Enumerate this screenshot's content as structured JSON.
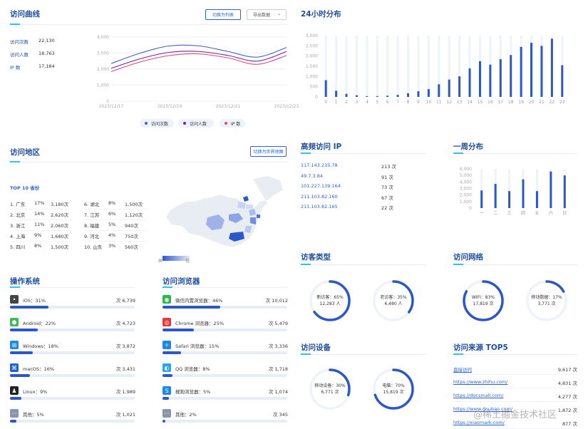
{
  "curve": {
    "title": "访问曲线",
    "btn_list": "切换为列表",
    "btn_export": "导出数据",
    "stats": [
      {
        "label": "访问次数",
        "value": "22,130"
      },
      {
        "label": "访问人数",
        "value": "18,763"
      },
      {
        "label": "IP 数",
        "value": "17,184"
      }
    ],
    "legend": [
      {
        "name": "访问次数",
        "color": "#3d63c8"
      },
      {
        "name": "访问人数",
        "color": "#7a1fa2"
      },
      {
        "name": "IP 数",
        "color": "#e0477a"
      }
    ],
    "chart_data": {
      "type": "line",
      "x": [
        "2023/12/17",
        "2023/12/18",
        "2023/12/19",
        "2023/12/20",
        "2023/12/21",
        "2023/12/22",
        "2023/12/23"
      ],
      "x_tick_labels": [
        "2023/12/17",
        "2023/12/19",
        "2023/12/21",
        "2023/12/23"
      ],
      "ylim": [
        0,
        4000
      ],
      "y_ticks": [
        "4,000",
        "3,000",
        "2,000",
        "1,000",
        "0"
      ],
      "series": [
        {
          "name": "访问次数",
          "values": [
            2350,
            3000,
            3450,
            3450,
            3100,
            2750,
            3350
          ]
        },
        {
          "name": "访问人数",
          "values": [
            2050,
            2650,
            3050,
            3100,
            2850,
            2500,
            3100
          ]
        },
        {
          "name": "IP 数",
          "values": [
            1850,
            2450,
            2850,
            2950,
            2700,
            2300,
            2850
          ]
        }
      ]
    }
  },
  "hours": {
    "title": "24小时分布",
    "chart_data": {
      "type": "bar",
      "categories": [
        "0",
        "1",
        "2",
        "3",
        "4",
        "5",
        "6",
        "7",
        "8",
        "9",
        "10",
        "11",
        "12",
        "13",
        "14",
        "15",
        "16",
        "17",
        "18",
        "19",
        "20",
        "21",
        "22",
        "23"
      ],
      "values": [
        820,
        300,
        150,
        80,
        40,
        40,
        60,
        100,
        180,
        280,
        380,
        620,
        850,
        1010,
        1400,
        1750,
        1580,
        1850,
        2050,
        2450,
        2650,
        2500,
        2850,
        1550
      ],
      "max": 3000,
      "ylim": [
        0,
        3000
      ],
      "y_ticks": [
        "3,000",
        "2,500",
        "2,000",
        "1,500",
        "1,000",
        "500",
        "0"
      ]
    }
  },
  "region": {
    "title": "访问地区",
    "btn_map": "切换为世界地图",
    "top_label": "TOP 10 省份",
    "provinces": [
      {
        "name": "1. 广东",
        "pct": "17%",
        "count": "3,180次"
      },
      {
        "name": "2. 北京",
        "pct": "14%",
        "count": "2,620次"
      },
      {
        "name": "3. 浙江",
        "pct": "11%",
        "count": "2,060次"
      },
      {
        "name": "4. 上海",
        "pct": "9%",
        "count": "1,680次"
      },
      {
        "name": "5. 四川",
        "pct": "8%",
        "count": "1,500次"
      },
      {
        "name": "6. 湖北",
        "pct": "8%",
        "count": "1,500次"
      },
      {
        "name": "7. 江苏",
        "pct": "6%",
        "count": "1,120次"
      },
      {
        "name": "8. 福建",
        "pct": "5%",
        "count": "940次"
      },
      {
        "name": "9. 河北",
        "pct": "4%",
        "count": "750次"
      },
      {
        "name": "10. 山东",
        "pct": "3%",
        "count": "560次"
      }
    ],
    "scale_high": "高",
    "scale_low": "低"
  },
  "ips": {
    "title": "高频访问 IP",
    "rows": [
      {
        "ip": "117.143.235.78",
        "count": "213 次"
      },
      {
        "ip": "49.7.3.84",
        "count": "91 次"
      },
      {
        "ip": "101.227.139.164",
        "count": "73 次"
      },
      {
        "ip": "211.103.82.160",
        "count": "67 次"
      },
      {
        "ip": "211.103.82.165",
        "count": "22 次"
      }
    ]
  },
  "week": {
    "title": "一周分布",
    "chart_data": {
      "type": "bar",
      "categories": [
        "一",
        "二",
        "三",
        "四",
        "五",
        "六",
        "日"
      ],
      "values": [
        2700,
        3700,
        2600,
        4400,
        2600,
        5600,
        5000
      ],
      "max": 6000,
      "ylim": [
        0,
        6000
      ],
      "y_ticks": [
        "6,000",
        "5,000",
        "4,000",
        "3,000",
        "2,000",
        "1,000",
        "0"
      ]
    }
  },
  "visitor": {
    "title": "访客类型",
    "items": [
      {
        "label": "新访客：65%",
        "value": "12,283 人",
        "pct": 0.65
      },
      {
        "label": "老访客：35%",
        "value": "6,480 人",
        "pct": 0.35
      }
    ]
  },
  "network": {
    "title": "访问网络",
    "items": [
      {
        "label": "WIFI：83%",
        "value": "17,819 次",
        "pct": 0.83
      },
      {
        "label": "移动数据：17%",
        "value": "3,771 次",
        "pct": 0.17
      }
    ]
  },
  "device": {
    "title": "访问设备",
    "items": [
      {
        "label": "移动设备：30%",
        "value": "6,771 次",
        "pct": 0.3
      },
      {
        "label": "电脑：70%",
        "value": "15,819 次",
        "pct": 0.7
      }
    ]
  },
  "os": {
    "title": "操作系统",
    "items": [
      {
        "icon": "apple-icon",
        "label": "iOS：31%",
        "count": "6,739 次",
        "pct": 0.31,
        "color": "#444"
      },
      {
        "icon": "android-icon",
        "label": "Android：22%",
        "count": "4,723 次",
        "pct": 0.22,
        "color": "#3fb950"
      },
      {
        "icon": "windows-icon",
        "label": "Windows：18%",
        "count": "3,872 次",
        "pct": 0.18,
        "color": "#1e88e5"
      },
      {
        "icon": "macos-icon",
        "label": "macOS：16%",
        "count": "3,431 次",
        "pct": 0.16,
        "color": "#1e63c9"
      },
      {
        "icon": "linux-icon",
        "label": "Linux：9%",
        "count": "1,989 次",
        "pct": 0.09,
        "color": "#222"
      },
      {
        "icon": "other-icon",
        "label": "其他：5%",
        "count": "1,021 次",
        "pct": 0.05,
        "color": "#8895aa"
      }
    ]
  },
  "browser": {
    "title": "访问浏览器",
    "items": [
      {
        "icon": "wechat-icon",
        "label": "微信内置浏览器：46%",
        "count": "10,012 次",
        "pct": 0.46,
        "color": "#2db84d"
      },
      {
        "icon": "chrome-icon",
        "label": "Chrome 浏览器：25%",
        "count": "5,479 次",
        "pct": 0.25,
        "color": "#e53935"
      },
      {
        "icon": "safari-icon",
        "label": "Safari 浏览器：15%",
        "count": "3,336 次",
        "pct": 0.15,
        "color": "#1e88e5"
      },
      {
        "icon": "qq-browser-icon",
        "label": "QQ 浏览器：8%",
        "count": "1,718 次",
        "pct": 0.08,
        "color": "#2aa3f0"
      },
      {
        "icon": "sogou-icon",
        "label": "搜狗浏览器：5%",
        "count": "1,074 次",
        "pct": 0.05,
        "color": "#1e88e5"
      },
      {
        "icon": "other-icon",
        "label": "其他：2%",
        "count": "345 次",
        "pct": 0.02,
        "color": "#8895aa"
      }
    ]
  },
  "sources": {
    "title": "访问来源 TOP5",
    "rows": [
      {
        "name": "直接访问",
        "count": "9,617 次"
      },
      {
        "name": "https://www.zhihu.com/",
        "count": "4,831 次"
      },
      {
        "name": "https://docsmall.com/",
        "count": "4,277 次"
      },
      {
        "name": "https://www.doubao.com/",
        "count": "1,872 次"
      },
      {
        "name": "https://xiaomark.com/",
        "count": "877 次"
      }
    ]
  },
  "watermark": "@稀土掘金技术社区"
}
